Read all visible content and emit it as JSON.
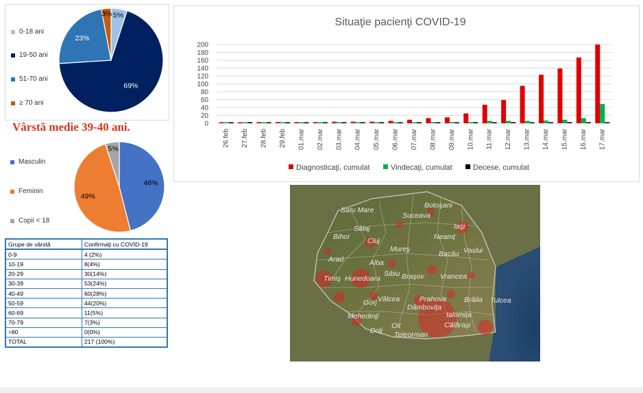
{
  "pie_age": {
    "legend": [
      {
        "label": "0-18 ani",
        "color": "#9dc3e6"
      },
      {
        "label": "19-50 ani",
        "color": "#002060"
      },
      {
        "label": "51-70 ani",
        "color": "#2e75b6"
      },
      {
        "label": "≥ 70 ani",
        "color": "#c55a11"
      }
    ]
  },
  "average_age_text": "Vârstă medie 39-40 ani.",
  "pie_gender": {
    "legend": [
      {
        "label": "Masculin",
        "color": "#4472c4"
      },
      {
        "label": "Feminin",
        "color": "#ed7d31"
      },
      {
        "label": "Copii < 18",
        "color": "#a5a5a5"
      }
    ]
  },
  "age_table": {
    "headers": [
      "Grupe de vârstă",
      "Confirmați cu COVID-19"
    ],
    "rows": [
      [
        "0-9",
        "4 (2%)"
      ],
      [
        "10-19",
        "8(4%)"
      ],
      [
        "20-29",
        "30(14%)"
      ],
      [
        "30-39",
        "53(24%)"
      ],
      [
        "40-49",
        "60(28%)"
      ],
      [
        "50-59",
        "44(20%)"
      ],
      [
        "60-69",
        "11(5%)"
      ],
      [
        "70-79",
        "7(3%)"
      ],
      [
        ">80",
        "0(0%)"
      ],
      [
        "TOTAL",
        "217 (100%)"
      ]
    ]
  },
  "chart_data": [
    {
      "type": "pie",
      "labels": [
        "0-18 ani",
        "19-50 ani",
        "51-70 ani",
        "≥ 70 ani"
      ],
      "values": [
        5,
        69,
        23,
        3
      ],
      "data_labels": [
        "5%",
        "69%",
        "23%",
        "3%"
      ],
      "colors": [
        "#9dc3e6",
        "#002060",
        "#2e75b6",
        "#c55a11"
      ],
      "legend_position": "left"
    },
    {
      "type": "pie",
      "labels": [
        "Masculin",
        "Feminin",
        "Copii < 18"
      ],
      "values": [
        46,
        49,
        5
      ],
      "data_labels": [
        "46%",
        "49%",
        "5%"
      ],
      "colors": [
        "#4472c4",
        "#ed7d31",
        "#a5a5a5"
      ],
      "legend_position": "left"
    },
    {
      "type": "bar",
      "title": "Situaţie pacienţi COVID-19",
      "categories": [
        "26.feb",
        "27.feb",
        "28.feb",
        "29.feb",
        "01.mar",
        "02.mar",
        "03.mar",
        "04.mar",
        "05.mar",
        "06.mar",
        "07.mar",
        "08.mar",
        "09.mar",
        "10.mar",
        "11.mar",
        "12.mar",
        "13.mar",
        "14.mar",
        "15.mar",
        "16.mar",
        "17.mar"
      ],
      "series": [
        {
          "name": "Diagnosticaţi, cumulat",
          "color": "#e00000",
          "values": [
            1,
            1,
            3,
            3,
            3,
            3,
            4,
            4,
            4,
            6,
            9,
            13,
            15,
            25,
            47,
            59,
            95,
            123,
            139,
            167,
            200
          ]
        },
        {
          "name": "Vindecaţi, cumulat",
          "color": "#00b050",
          "values": [
            0,
            0,
            1,
            1,
            1,
            1,
            1,
            1,
            1,
            1,
            1,
            3,
            3,
            3,
            6,
            6,
            6,
            7,
            9,
            13,
            49
          ]
        },
        {
          "name": "Decese, cumulat",
          "color": "#000000",
          "values": [
            0,
            0,
            0,
            0,
            0,
            0,
            0,
            0,
            0,
            0,
            0,
            0,
            0,
            0,
            0,
            0,
            0,
            0,
            0,
            0,
            0
          ]
        }
      ],
      "ylim": [
        0,
        200
      ],
      "yticks": [
        0,
        20,
        40,
        60,
        80,
        100,
        120,
        140,
        160,
        180,
        200
      ],
      "grid": true,
      "legend_position": "bottom"
    }
  ],
  "map": {
    "labels": [
      "Satu Mare",
      "Botoşani",
      "Suceava",
      "Sălaj",
      "Iaşi",
      "Bihor",
      "Cluj",
      "Neamţ",
      "Mureş",
      "Bacău",
      "Vaslui",
      "Arad",
      "Alba",
      "Timiş",
      "Hunedoara",
      "Sibiu",
      "Braşov",
      "Vrancea",
      "Gorj",
      "Vâlcea",
      "Prahova",
      "Brăila",
      "Tulcea",
      "Mehedinţi",
      "Dâmboviţa",
      "Ialomiţa",
      "Călăraşi",
      "Olt",
      "Dolj",
      "Teleorman"
    ]
  }
}
